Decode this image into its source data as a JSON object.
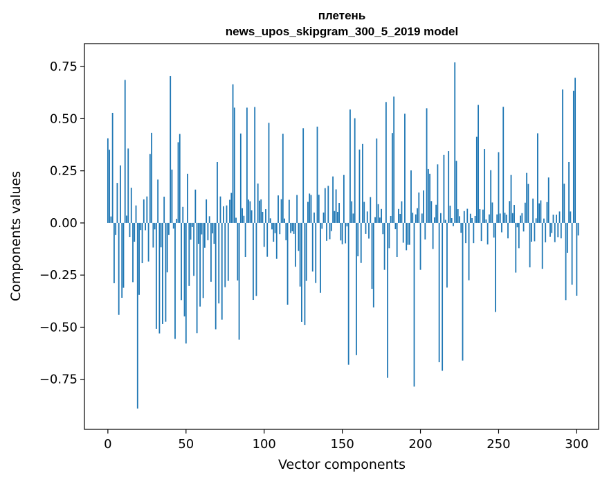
{
  "chart_data": {
    "type": "bar",
    "title_line1": "плетень",
    "title_line2": "news_upos_skipgram_300_5_2019 model",
    "xlabel": "Vector components",
    "ylabel": "Components values",
    "xlim": [
      -15,
      314
    ],
    "ylim": [
      -0.99,
      0.86
    ],
    "xticks": [
      0,
      50,
      100,
      150,
      200,
      250,
      300
    ],
    "xtick_labels": [
      "0",
      "50",
      "100",
      "150",
      "200",
      "250",
      "300"
    ],
    "yticks": [
      -0.75,
      -0.5,
      -0.25,
      0.0,
      0.25,
      0.5,
      0.75
    ],
    "ytick_labels": [
      "−0.75",
      "−0.50",
      "−0.25",
      "0.00",
      "0.25",
      "0.50",
      "0.75"
    ],
    "bar_color": "#1f77b4",
    "values": [
      0.406,
      0.351,
      0.031,
      0.528,
      -0.289,
      -0.057,
      0.192,
      -0.441,
      0.276,
      -0.359,
      -0.311,
      0.686,
      0.035,
      0.357,
      -0.067,
      0.169,
      -0.284,
      -0.09,
      0.084,
      -0.89,
      -0.345,
      -0.034,
      -0.193,
      0.113,
      -0.035,
      0.127,
      -0.185,
      0.331,
      0.432,
      -0.118,
      -0.031,
      -0.508,
      0.208,
      -0.53,
      -0.117,
      -0.485,
      0.126,
      -0.474,
      -0.237,
      -0.057,
      0.704,
      0.256,
      -0.027,
      -0.556,
      0.02,
      0.387,
      0.427,
      -0.37,
      0.077,
      -0.448,
      -0.578,
      0.236,
      -0.302,
      -0.08,
      -0.02,
      -0.254,
      0.16,
      -0.529,
      -0.1,
      -0.401,
      -0.055,
      -0.36,
      -0.119,
      0.113,
      -0.083,
      0.032,
      -0.282,
      -0.05,
      -0.1,
      -0.51,
      0.292,
      -0.386,
      0.127,
      -0.464,
      0.08,
      -0.308,
      0.084,
      -0.278,
      0.111,
      0.144,
      0.665,
      0.553,
      0.025,
      -0.276,
      -0.56,
      0.429,
      0.071,
      0.034,
      -0.163,
      0.553,
      0.112,
      0.104,
      0.061,
      -0.369,
      0.556,
      -0.35,
      0.189,
      0.107,
      0.113,
      0.053,
      -0.115,
      0.066,
      -0.162,
      0.48,
      0.022,
      -0.031,
      -0.09,
      -0.049,
      -0.172,
      0.132,
      -0.054,
      0.114,
      0.428,
      0.021,
      -0.083,
      -0.392,
      0.111,
      -0.048,
      -0.04,
      -0.053,
      -0.21,
      0.134,
      -0.134,
      -0.305,
      -0.475,
      0.454,
      -0.489,
      -0.278,
      0.101,
      0.141,
      0.134,
      -0.233,
      0.05,
      -0.288,
      0.462,
      0.135,
      -0.335,
      -0.028,
      0.05,
      0.167,
      -0.086,
      0.178,
      -0.078,
      -0.039,
      0.223,
      0.057,
      0.161,
      0.053,
      0.096,
      -0.084,
      -0.102,
      0.23,
      -0.098,
      -0.016,
      -0.68,
      0.544,
      0.104,
      0.045,
      0.502,
      -0.634,
      -0.16,
      0.352,
      -0.192,
      0.379,
      0.101,
      -0.053,
      0.055,
      -0.075,
      0.124,
      -0.316,
      -0.405,
      0.028,
      0.405,
      0.09,
      0.026,
      0.067,
      -0.054,
      -0.225,
      0.58,
      -0.743,
      -0.121,
      0.033,
      0.431,
      0.606,
      -0.03,
      -0.163,
      0.067,
      0.043,
      0.104,
      -0.095,
      0.524,
      -0.131,
      -0.105,
      -0.105,
      0.252,
      0.049,
      -0.785,
      0.041,
      0.071,
      0.146,
      -0.225,
      0.045,
      0.156,
      -0.079,
      0.55,
      0.259,
      0.236,
      0.105,
      -0.125,
      0.027,
      0.087,
      0.281,
      -0.668,
      0.047,
      -0.709,
      0.326,
      0.015,
      -0.31,
      0.345,
      0.083,
      0.023,
      -0.015,
      0.77,
      0.298,
      0.066,
      0.032,
      -0.047,
      -0.66,
      0.057,
      -0.097,
      0.068,
      -0.275,
      0.044,
      0.023,
      -0.097,
      0.033,
      0.413,
      0.566,
      0.066,
      -0.087,
      0.064,
      0.355,
      0.017,
      -0.103,
      0.041,
      0.253,
      0.098,
      -0.07,
      -0.427,
      0.041,
      0.339,
      0.045,
      -0.045,
      0.557,
      0.049,
      0.04,
      -0.074,
      0.105,
      0.23,
      0.047,
      0.086,
      -0.238,
      -0.021,
      -0.121,
      0.035,
      0.047,
      -0.041,
      0.097,
      0.24,
      0.187,
      -0.213,
      -0.09,
      0.117,
      -0.088,
      0.022,
      0.43,
      0.094,
      0.108,
      -0.22,
      0.021,
      -0.093,
      0.1,
      0.218,
      -0.066,
      -0.048,
      0.04,
      -0.092,
      0.04,
      -0.068,
      0.055,
      -0.074,
      0.64,
      0.188,
      -0.37,
      -0.143,
      0.292,
      0.055,
      -0.296,
      0.634,
      0.696,
      -0.349,
      -0.06
    ]
  }
}
